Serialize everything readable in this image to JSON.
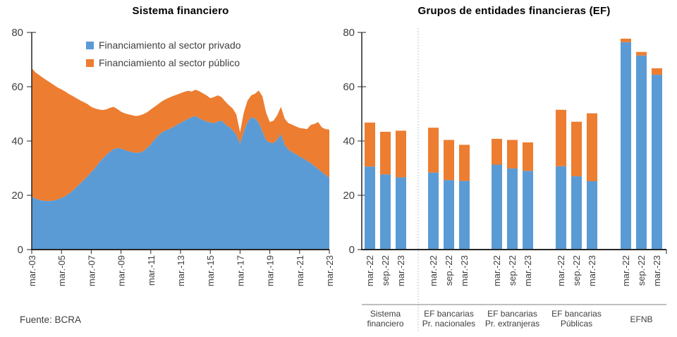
{
  "page": {
    "source_note": "Fuente: BCRA"
  },
  "colors": {
    "private": "#5B9BD5",
    "public": "#ED7D31",
    "axis": "#262626",
    "tick_text": "#404040",
    "separator": "#BFBFBF",
    "group_line": "#7f7f7f"
  },
  "chart_data": [
    {
      "type": "area",
      "stacked": true,
      "title": "Sistema financiero",
      "x_start": "mar-03",
      "x_end": "mar-23",
      "sampling": "quarterly",
      "x_tick_labels": [
        "mar.-03",
        "mar.-05",
        "mar.-07",
        "mar.-09",
        "mar.-11",
        "mar.-13",
        "mar.-15",
        "mar.-17",
        "mar.-19",
        "mar.-21",
        "mar.-23"
      ],
      "ylim": [
        0,
        80
      ],
      "y_ticks": [
        0,
        20,
        40,
        60,
        80
      ],
      "grid": false,
      "legend_position": "top-inside",
      "series": [
        {
          "name": "Financiamiento al sector privado",
          "color": "#5B9BD5",
          "values": [
            19.5,
            18.8,
            18.3,
            18.0,
            17.9,
            17.9,
            18.1,
            18.5,
            19.0,
            19.7,
            20.6,
            21.7,
            23.0,
            24.3,
            25.6,
            27.0,
            28.5,
            30.0,
            31.8,
            33.4,
            34.8,
            36.0,
            37.0,
            37.4,
            37.2,
            36.7,
            36.2,
            35.9,
            35.7,
            35.7,
            36.3,
            37.4,
            38.8,
            40.5,
            42.0,
            43.2,
            43.9,
            44.4,
            45.1,
            45.9,
            46.7,
            47.4,
            48.1,
            48.8,
            49.2,
            48.4,
            47.7,
            47.2,
            46.8,
            46.6,
            47.1,
            47.6,
            46.2,
            45.2,
            44.0,
            42.3,
            39.0,
            43.5,
            46.8,
            48.8,
            48.3,
            46.8,
            43.5,
            40.3,
            39.4,
            39.2,
            40.5,
            42.6,
            38.5,
            36.8,
            35.9,
            35.1,
            34.3,
            33.5,
            32.7,
            31.9,
            30.7,
            29.7,
            28.6,
            27.5,
            26.4
          ]
        },
        {
          "name": "Financiamiento al sector público",
          "color": "#ED7D31",
          "values": [
            47.3,
            46.5,
            46.0,
            45.3,
            44.5,
            43.6,
            42.5,
            41.2,
            40.0,
            38.5,
            36.7,
            34.9,
            32.8,
            30.7,
            28.7,
            26.6,
            24.1,
            22.0,
            19.8,
            18.0,
            16.8,
            16.2,
            15.6,
            14.4,
            13.6,
            13.5,
            13.6,
            13.6,
            13.5,
            13.7,
            13.6,
            13.2,
            12.8,
            12.1,
            11.6,
            11.4,
            11.5,
            11.6,
            11.5,
            11.2,
            10.9,
            10.7,
            10.4,
            9.4,
            9.7,
            10.0,
            9.9,
            9.6,
            9.0,
            9.6,
            9.7,
            8.6,
            8.4,
            8.0,
            8.0,
            7.5,
            4.2,
            7.0,
            8.0,
            8.0,
            9.1,
            11.8,
            13.0,
            10.2,
            7.6,
            8.3,
            9.0,
            10.0,
            9.7,
            9.8,
            10.1,
            10.3,
            10.5,
            11.1,
            11.7,
            14.0,
            15.6,
            17.3,
            16.4,
            16.9,
            17.8
          ]
        }
      ]
    },
    {
      "type": "bar",
      "stacked": true,
      "title": "Grupos de entidades financieras (EF)",
      "ylim": [
        0,
        80
      ],
      "y_ticks": [
        0,
        20,
        40,
        60,
        80
      ],
      "grid": false,
      "series_names": [
        "Financiamiento al sector privado",
        "Financiamiento al sector público"
      ],
      "bar_periods": [
        "mar.-22",
        "sep.-22",
        "mar.-23"
      ],
      "groups": [
        {
          "label_lines": [
            "Sistema",
            "financiero"
          ],
          "bars": [
            {
              "period": "mar.-22",
              "private": 30.6,
              "public": 16.2
            },
            {
              "period": "sep.-22",
              "private": 27.7,
              "public": 15.7
            },
            {
              "period": "mar.-23",
              "private": 26.6,
              "public": 17.2
            }
          ]
        },
        {
          "label_lines": [
            "EF bancarias",
            "Pr. nacionales"
          ],
          "bars": [
            {
              "period": "mar.-22",
              "private": 28.4,
              "public": 16.5
            },
            {
              "period": "sep.-22",
              "private": 25.6,
              "public": 14.8
            },
            {
              "period": "mar.-23",
              "private": 25.3,
              "public": 13.3
            }
          ]
        },
        {
          "label_lines": [
            "EF bancarias",
            "Pr. extranjeras"
          ],
          "bars": [
            {
              "period": "mar.-22",
              "private": 31.3,
              "public": 9.5
            },
            {
              "period": "sep.-22",
              "private": 29.9,
              "public": 10.5
            },
            {
              "period": "mar.-23",
              "private": 29.0,
              "public": 10.5
            }
          ]
        },
        {
          "label_lines": [
            "EF bancarias",
            "Públicas"
          ],
          "bars": [
            {
              "period": "mar.-22",
              "private": 30.7,
              "public": 20.8
            },
            {
              "period": "sep.-22",
              "private": 27.0,
              "public": 20.1
            },
            {
              "period": "mar.-23",
              "private": 25.2,
              "public": 25.0
            }
          ]
        },
        {
          "label_lines": [
            "EFNB"
          ],
          "bars": [
            {
              "period": "mar.-22",
              "private": 76.4,
              "public": 1.3
            },
            {
              "period": "sep.-22",
              "private": 71.5,
              "public": 1.3
            },
            {
              "period": "mar.-23",
              "private": 64.4,
              "public": 2.4
            }
          ]
        }
      ]
    }
  ]
}
